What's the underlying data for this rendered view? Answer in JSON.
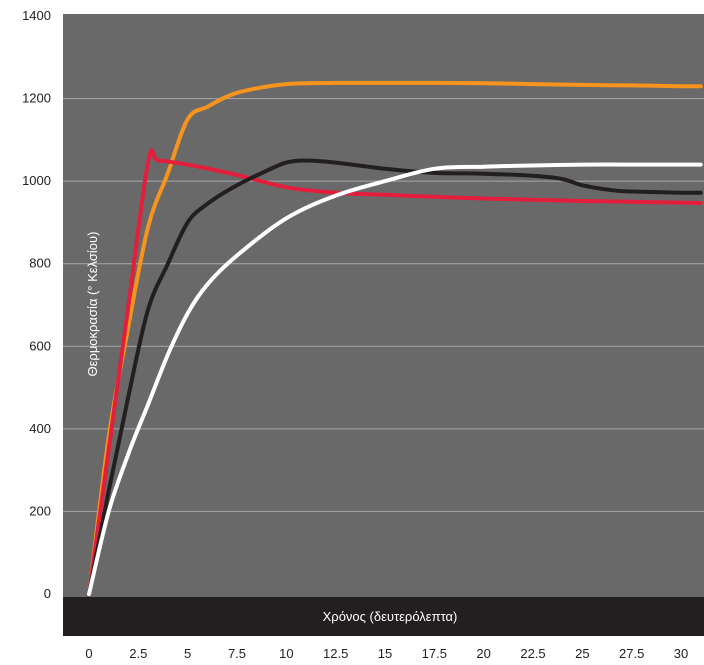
{
  "chart_data": {
    "type": "line",
    "title": "",
    "xlabel": "Χρόνος (δευτερόλεπτα)",
    "ylabel": "Θερμοκρασία (° Κελσίου)",
    "xlim": [
      0,
      31
    ],
    "ylim": [
      0,
      1400
    ],
    "x_ticks": [
      "0",
      "2.5",
      "5",
      "7.5",
      "10",
      "12.5",
      "15",
      "17.5",
      "20",
      "22.5",
      "25",
      "27.5",
      "30"
    ],
    "y_ticks": [
      "0",
      "200",
      "400",
      "600",
      "800",
      "1000",
      "1200",
      "1400"
    ],
    "grid": true,
    "background": "#696969",
    "axis_band_color": "#231f20",
    "series": [
      {
        "color": "#f7941d",
        "x": [
          0,
          1,
          2,
          3,
          4,
          5,
          6,
          7,
          8,
          10,
          12.5,
          15,
          17.5,
          20,
          22.5,
          25,
          27.5,
          30,
          31
        ],
        "y": [
          0,
          380,
          650,
          890,
          1020,
          1150,
          1180,
          1205,
          1220,
          1235,
          1238,
          1238,
          1238,
          1237,
          1235,
          1233,
          1232,
          1230,
          1230
        ]
      },
      {
        "color": "#e31e3c",
        "x": [
          0,
          1,
          2,
          3,
          3.5,
          5,
          7.5,
          10,
          12.5,
          15,
          17.5,
          20,
          22.5,
          25,
          27.5,
          30,
          31
        ],
        "y": [
          0,
          350,
          700,
          1048,
          1050,
          1040,
          1015,
          985,
          972,
          967,
          962,
          958,
          955,
          952,
          950,
          948,
          947
        ]
      },
      {
        "color": "#231f20",
        "x": [
          0,
          1,
          2,
          3,
          4,
          5,
          6,
          7.5,
          9,
          10,
          11,
          12.5,
          15,
          17.5,
          20,
          22.5,
          24,
          25,
          26.5,
          27.5,
          30,
          31
        ],
        "y": [
          0,
          250,
          480,
          690,
          800,
          900,
          945,
          990,
          1025,
          1045,
          1050,
          1045,
          1030,
          1020,
          1018,
          1013,
          1005,
          990,
          978,
          975,
          972,
          972
        ]
      },
      {
        "color": "#ffffff",
        "x": [
          0,
          1,
          2,
          3,
          4,
          5,
          6,
          7.5,
          10,
          12.5,
          15,
          17.5,
          20,
          22.5,
          25,
          27.5,
          30,
          31
        ],
        "y": [
          0,
          200,
          340,
          460,
          580,
          680,
          750,
          820,
          910,
          965,
          1000,
          1030,
          1035,
          1038,
          1040,
          1040,
          1040,
          1040
        ]
      }
    ]
  }
}
